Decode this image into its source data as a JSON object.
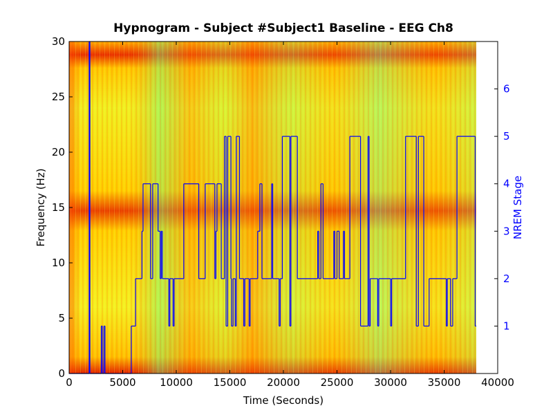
{
  "chart_data": {
    "type": "step",
    "title": "Hypnogram - Subject #Subject1 Baseline - EEG Ch8",
    "x_label": "Time (Seconds)",
    "y_label": "Frequency (Hz)",
    "y2_label": "NREM Stage",
    "xlim": [
      0,
      40000
    ],
    "xticks": [
      0,
      5000,
      10000,
      15000,
      20000,
      25000,
      30000,
      35000,
      40000
    ],
    "ylim": [
      0,
      30
    ],
    "yticks": [
      0,
      5,
      10,
      15,
      20,
      25,
      30
    ],
    "y2lim": [
      0,
      7
    ],
    "y2ticks": [
      1,
      2,
      3,
      4,
      5,
      6
    ],
    "series": [
      {
        "color": "#0000ff",
        "axis": "y2",
        "x": [
          0,
          1870,
          1940,
          3000,
          3100,
          3250,
          3350,
          5800,
          6200,
          6800,
          6900,
          7600,
          7800,
          8300,
          8500,
          8600,
          8700,
          9300,
          9400,
          9700,
          9800,
          10700,
          12100,
          12700,
          13600,
          13700,
          13800,
          14200,
          14500,
          14650,
          14800,
          15100,
          15150,
          15300,
          15500,
          15600,
          15900,
          16300,
          16400,
          16800,
          16900,
          17600,
          17800,
          18000,
          18900,
          19000,
          19600,
          19700,
          19900,
          20600,
          20700,
          21300,
          23200,
          23300,
          23500,
          23700,
          24700,
          24800,
          25000,
          25200,
          25600,
          25700,
          26200,
          27200,
          27900,
          28000,
          28100,
          28800,
          28900,
          30000,
          30100,
          31400,
          32400,
          32600,
          33100,
          33600,
          35200,
          35300,
          35600,
          35800,
          36200,
          37900,
          38000
        ],
        "values": [
          0,
          7,
          0,
          1,
          0,
          1,
          0,
          1,
          2,
          3,
          4,
          2,
          4,
          3,
          2,
          3,
          2,
          1,
          2,
          1,
          2,
          4,
          2,
          4,
          2,
          3,
          4,
          2,
          5,
          1,
          5,
          2,
          1,
          2,
          1,
          5,
          2,
          1,
          2,
          1,
          2,
          3,
          4,
          2,
          4,
          2,
          1,
          2,
          5,
          1,
          5,
          2,
          3,
          2,
          4,
          2,
          3,
          2,
          3,
          2,
          3,
          2,
          5,
          1,
          5,
          1,
          2,
          1,
          2,
          1,
          2,
          5,
          1,
          5,
          1,
          2,
          1,
          2,
          1,
          2,
          5,
          1,
          1
        ]
      }
    ]
  }
}
